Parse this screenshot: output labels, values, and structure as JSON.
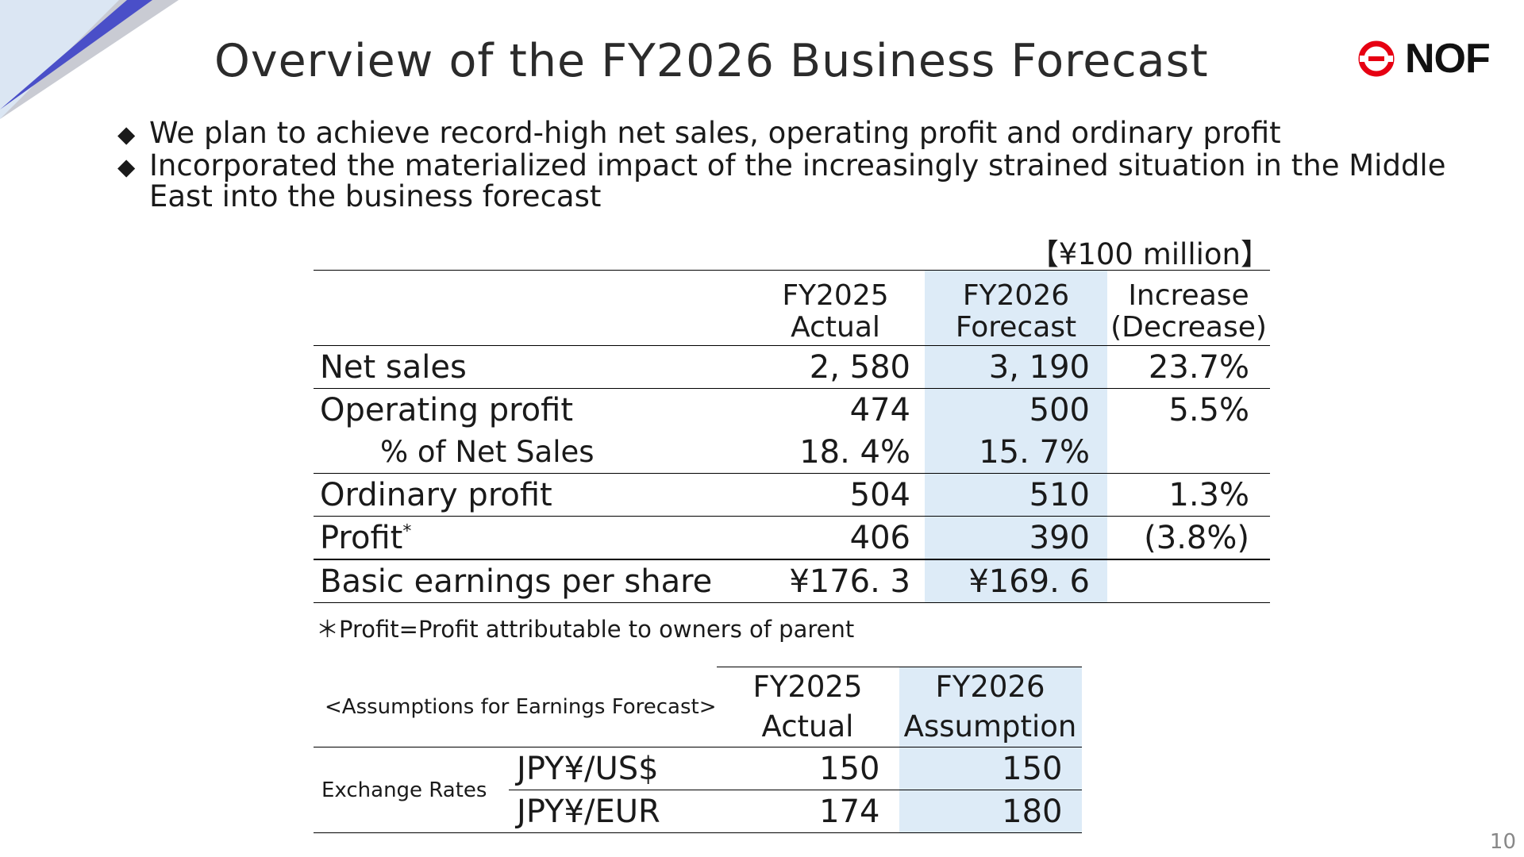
{
  "title": "Overview of the FY2026 Business Forecast",
  "brand": {
    "name": "NOF",
    "accent": "#e60012",
    "logo_icon": "nof-logo-icon"
  },
  "bullets": [
    "We plan to achieve record-high net sales, operating profit and ordinary profit",
    "Incorporated the materialized impact of the increasingly strained situation in the Middle East into the business forecast"
  ],
  "unit": "【¥100 million】",
  "forecast_table": {
    "headers": [
      {
        "line1": "FY2025",
        "line2": "Actual"
      },
      {
        "line1": "FY2026",
        "line2": "Forecast"
      },
      {
        "line1": "Increase",
        "line2": "(Decrease)"
      }
    ],
    "rows": [
      {
        "label": "Net sales",
        "fy2025": "2, 580",
        "fy2026": "3, 190",
        "change": "23.7%"
      },
      {
        "label": "Operating profit",
        "fy2025": "474",
        "fy2026": "500",
        "change": "5.5%"
      },
      {
        "label": "% of Net Sales",
        "fy2025": "18. 4%",
        "fy2026": "15. 7%",
        "change": ""
      },
      {
        "label": "Ordinary profit",
        "fy2025": "504",
        "fy2026": "510",
        "change": "1.3%"
      },
      {
        "label": "Profit",
        "label_mark": "*",
        "fy2025": "406",
        "fy2026": "390",
        "change": "(3.8%)"
      },
      {
        "label": "Basic earnings per share",
        "fy2025": "¥176. 3",
        "fy2026": "¥169. 6",
        "change": ""
      }
    ]
  },
  "footnote": "＊Profit=Profit attributable to owners of parent",
  "assumptions": {
    "caption": "<Assumptions for Earnings Forecast>",
    "headers": [
      {
        "line1": "FY2025",
        "line2": "Actual"
      },
      {
        "line1": "FY2026",
        "line2": "Assumption"
      }
    ],
    "group_label": "Exchange Rates",
    "rows": [
      {
        "currency": "JPY¥/US$",
        "fy2025": "150",
        "fy2026": "150"
      },
      {
        "currency": "JPY¥/EUR",
        "fy2025": "174",
        "fy2026": "180"
      }
    ]
  },
  "page_number": "10"
}
